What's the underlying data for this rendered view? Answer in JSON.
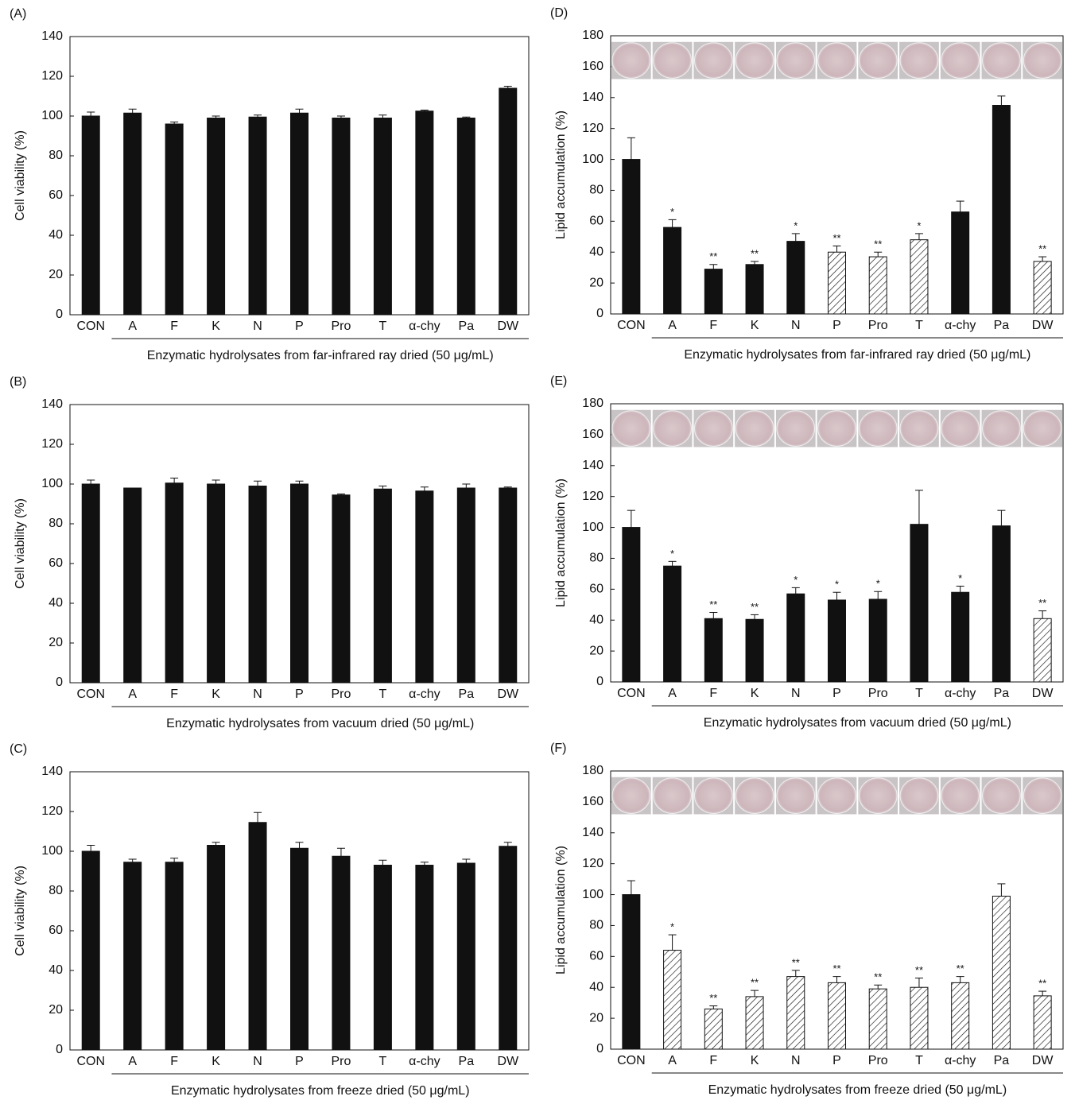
{
  "chart_data": [
    {
      "type": "bar",
      "panel": "(A)",
      "y_label": "Cell viability (%)",
      "x_label": "Enzymatic hydrolysates from far-infrared ray dried (50 μg/mL)",
      "categories": [
        "CON",
        "A",
        "F",
        "K",
        "N",
        "P",
        "Pro",
        "T",
        "α-chy",
        "Pa",
        "DW"
      ],
      "values": [
        100,
        101.5,
        96,
        99,
        99.5,
        101.5,
        99,
        99,
        102.5,
        99,
        114
      ],
      "errors": [
        2,
        2,
        1,
        1,
        1,
        2,
        1,
        1.5,
        0.5,
        0.5,
        1
      ],
      "ylim": [
        0,
        140
      ],
      "yticks": [
        0,
        20,
        40,
        60,
        80,
        100,
        120,
        140
      ],
      "color": "#111111"
    },
    {
      "type": "bar",
      "panel": "(B)",
      "y_label": "Cell viability (%)",
      "x_label": "Enzymatic hydrolysates from vacuum dried (50 μg/mL)",
      "categories": [
        "CON",
        "A",
        "F",
        "K",
        "N",
        "P",
        "Pro",
        "T",
        "α-chy",
        "Pa",
        "DW"
      ],
      "values": [
        100,
        98,
        100.5,
        100,
        99,
        100,
        94.5,
        97.5,
        96.5,
        98,
        98
      ],
      "errors": [
        2,
        0,
        2.5,
        2,
        2.5,
        1.5,
        0.5,
        1.5,
        2,
        2,
        0.5
      ],
      "ylim": [
        0,
        140
      ],
      "yticks": [
        0,
        20,
        40,
        60,
        80,
        100,
        120,
        140
      ],
      "color": "#111111"
    },
    {
      "type": "bar",
      "panel": "(C)",
      "y_label": "Cell viability (%)",
      "x_label": "Enzymatic hydrolysates from freeze dried (50 μg/mL)",
      "categories": [
        "CON",
        "A",
        "F",
        "K",
        "N",
        "P",
        "Pro",
        "T",
        "α-chy",
        "Pa",
        "DW"
      ],
      "values": [
        100,
        94.5,
        94.5,
        103,
        114.5,
        101.5,
        97.5,
        93,
        93,
        94,
        102.5
      ],
      "errors": [
        3,
        1.5,
        2,
        1.5,
        5,
        3,
        4,
        2.5,
        1.5,
        2,
        2
      ],
      "ylim": [
        0,
        140
      ],
      "yticks": [
        0,
        20,
        40,
        60,
        80,
        100,
        120,
        140
      ],
      "color": "#111111"
    },
    {
      "type": "bar",
      "panel": "(D)",
      "y_label": "Lipid accumulation (%)",
      "x_label": "Enzymatic hydrolysates from far-infrared ray dried (50 μg/mL)",
      "categories": [
        "CON",
        "A",
        "F",
        "K",
        "N",
        "P",
        "Pro",
        "T",
        "α-chy",
        "Pa",
        "DW"
      ],
      "values": [
        100,
        56,
        29,
        32,
        47,
        40,
        37,
        48,
        66,
        135,
        34
      ],
      "errors": [
        14,
        5,
        3,
        2,
        5,
        4,
        3,
        4,
        7,
        6,
        3
      ],
      "significance": [
        null,
        "*",
        "**",
        "**",
        "*",
        "**",
        "**",
        "*",
        null,
        null,
        "**"
      ],
      "hatched": [
        false,
        false,
        false,
        false,
        false,
        true,
        true,
        true,
        false,
        false,
        true
      ],
      "ylim": [
        0,
        180
      ],
      "yticks": [
        0,
        20,
        40,
        60,
        80,
        100,
        120,
        140,
        160,
        180
      ],
      "color": "#111111",
      "well_images": true
    },
    {
      "type": "bar",
      "panel": "(E)",
      "y_label": "Lipid accumulation (%)",
      "x_label": "Enzymatic hydrolysates from vacuum dried (50 μg/mL)",
      "categories": [
        "CON",
        "A",
        "F",
        "K",
        "N",
        "P",
        "Pro",
        "T",
        "α-chy",
        "Pa",
        "DW"
      ],
      "values": [
        100,
        75,
        41,
        40.5,
        57,
        53,
        53.5,
        102,
        58,
        101,
        41
      ],
      "errors": [
        11,
        3,
        4,
        3,
        4,
        5,
        5,
        22,
        4,
        10,
        5
      ],
      "significance": [
        null,
        "*",
        "**",
        "**",
        "*",
        "*",
        "*",
        null,
        "*",
        null,
        "**"
      ],
      "hatched": [
        false,
        false,
        false,
        false,
        false,
        false,
        false,
        false,
        false,
        false,
        true
      ],
      "ylim": [
        0,
        180
      ],
      "yticks": [
        0,
        20,
        40,
        60,
        80,
        100,
        120,
        140,
        160,
        180
      ],
      "color": "#111111",
      "well_images": true
    },
    {
      "type": "bar",
      "panel": "(F)",
      "y_label": "Lipid accumulation (%)",
      "x_label": "Enzymatic hydrolysates from freeze dried (50 μg/mL)",
      "categories": [
        "CON",
        "A",
        "F",
        "K",
        "N",
        "P",
        "Pro",
        "T",
        "α-chy",
        "Pa",
        "DW"
      ],
      "values": [
        100,
        64,
        26,
        34,
        47,
        43,
        39,
        40,
        43,
        99,
        34.5
      ],
      "errors": [
        9,
        10,
        2,
        4,
        4,
        4,
        2.5,
        6,
        4,
        8,
        3
      ],
      "significance": [
        null,
        "*",
        "**",
        "**",
        "**",
        "**",
        "**",
        "**",
        "**",
        null,
        "**"
      ],
      "hatched": [
        false,
        true,
        true,
        true,
        true,
        true,
        true,
        true,
        true,
        true,
        true
      ],
      "ylim": [
        0,
        180
      ],
      "yticks": [
        0,
        20,
        40,
        60,
        80,
        100,
        120,
        140,
        160,
        180
      ],
      "color": "#111111",
      "well_images": true
    }
  ]
}
